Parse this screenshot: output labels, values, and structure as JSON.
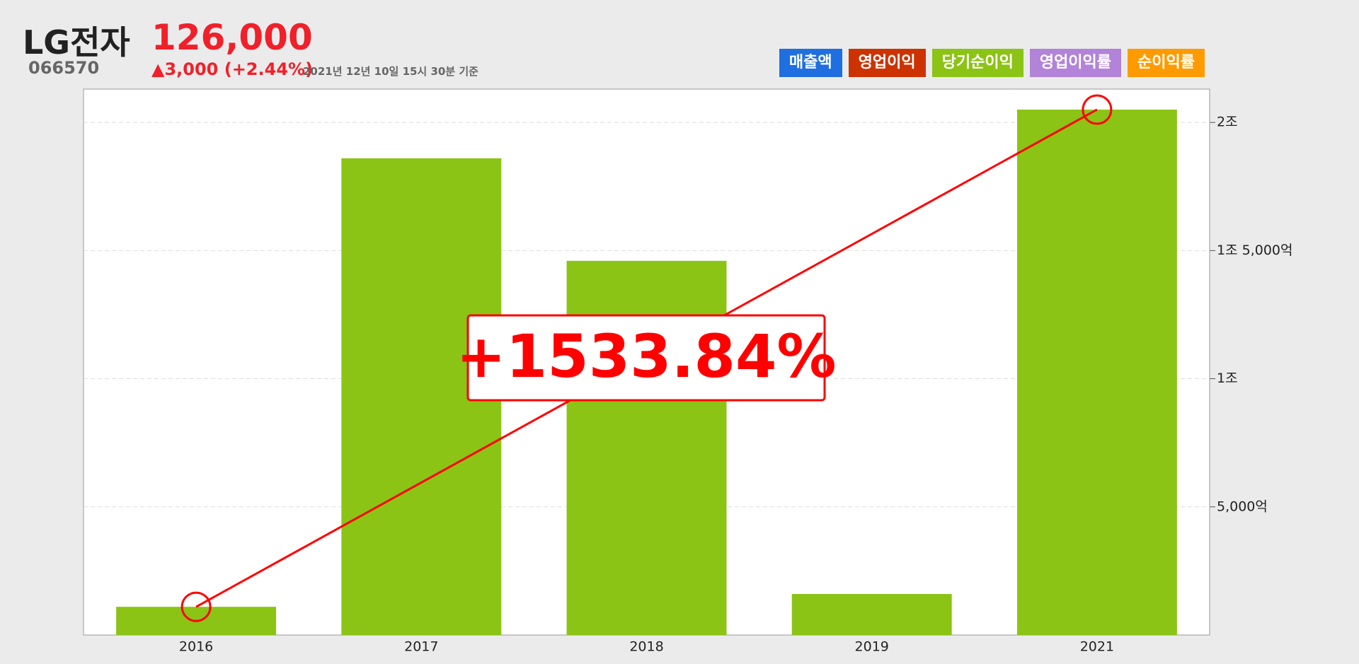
{
  "header": {
    "name": "LG전자",
    "code": "066570",
    "price": "126,000",
    "change": "▲3,000 (+2.44%)",
    "timestamp": "2021년 12년 10일 15시 30분 기준"
  },
  "legend_buttons": [
    {
      "name": "매출액",
      "color": "#1f6fe0"
    },
    {
      "name": "영업이익",
      "color": "#cc3300"
    },
    {
      "name": "당기순이익",
      "color": "#8bc414"
    },
    {
      "name": "영업이익률",
      "color": "#b283d9"
    },
    {
      "name": "순이익률",
      "color": "#ff9a00"
    }
  ],
  "chart_data": {
    "type": "bar",
    "categories": [
      "2016",
      "2017",
      "2018",
      "2019",
      "2021"
    ],
    "values": [
      1100,
      18600,
      14600,
      1600,
      20500
    ],
    "color": "#8bc414",
    "ylim": [
      0,
      21300
    ],
    "yticks": [
      {
        "value": 5000,
        "label": "5,000억"
      },
      {
        "value": 10000,
        "label": "1조"
      },
      {
        "value": 15000,
        "label": "1조 5,000억"
      },
      {
        "value": 20000,
        "label": "2조"
      }
    ],
    "grid": true,
    "annotation": {
      "text": "+1533.84%",
      "color": "#ff0000"
    }
  }
}
